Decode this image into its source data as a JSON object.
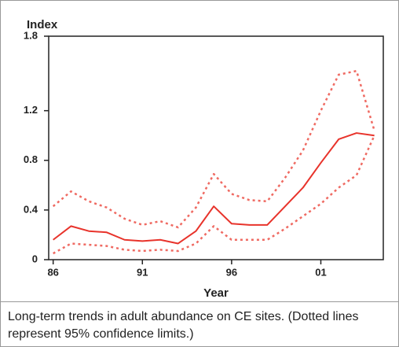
{
  "chart_data": {
    "type": "line",
    "y_label": "Index",
    "x_label": "Year",
    "caption": "Long-term trends in adult abundance on CE sites. (Dotted lines represent 95% confidence limits.)",
    "x": [
      1986,
      1987,
      1988,
      1989,
      1990,
      1991,
      1992,
      1993,
      1994,
      1995,
      1996,
      1997,
      1998,
      1999,
      2000,
      2001,
      2002,
      2003,
      2004
    ],
    "series": [
      {
        "color": "#e8332b",
        "style": "solid",
        "values": [
          0.16,
          0.27,
          0.23,
          0.22,
          0.16,
          0.15,
          0.16,
          0.13,
          0.23,
          0.43,
          0.29,
          0.28,
          0.28,
          0.43,
          0.58,
          0.78,
          0.97,
          1.02,
          1.0
        ]
      },
      {
        "color": "#ef6a62",
        "style": "dotted",
        "values": [
          0.43,
          0.55,
          0.47,
          0.42,
          0.33,
          0.28,
          0.31,
          0.26,
          0.42,
          0.69,
          0.53,
          0.48,
          0.47,
          0.66,
          0.88,
          1.2,
          1.49,
          1.52,
          1.04
        ]
      },
      {
        "color": "#ef6a62",
        "style": "dotted",
        "values": [
          0.05,
          0.13,
          0.12,
          0.11,
          0.08,
          0.07,
          0.08,
          0.07,
          0.13,
          0.27,
          0.16,
          0.16,
          0.16,
          0.25,
          0.35,
          0.45,
          0.58,
          0.68,
          1.0
        ]
      }
    ],
    "xlim": [
      1985.75,
      2004.5
    ],
    "xticks": [
      {
        "value": 1986,
        "label": "86"
      },
      {
        "value": 1991,
        "label": "91"
      },
      {
        "value": 1996,
        "label": "96"
      },
      {
        "value": 2001,
        "label": "01"
      }
    ],
    "ylim": [
      0,
      1.8
    ],
    "yticks": [
      0,
      0.4,
      0.8,
      1.2,
      1.8
    ]
  }
}
